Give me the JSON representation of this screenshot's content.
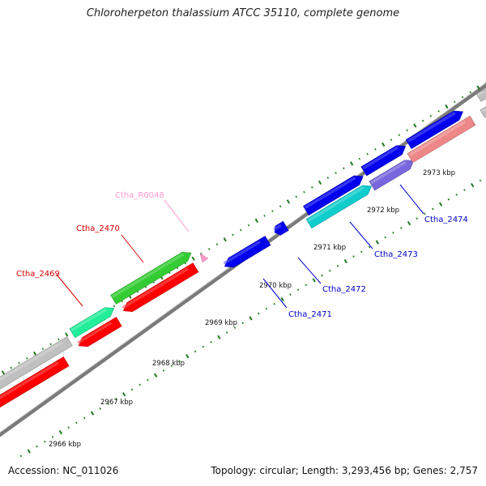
{
  "title": "Chloroherpeton thalassium ATCC 35110, complete genome",
  "footer": {
    "accession": "Accession: NC_011026",
    "summary": "Topology: circular; Length: 3,293,456 bp; Genes: 2,757"
  },
  "colors": {
    "backbone": "#7a7a7a",
    "ticks": "#1f7a1f",
    "red": "#ff0000",
    "green": "#33cc33",
    "aqua": "#22ee99",
    "gray": "#c0c0c0",
    "pink": "#ff99cc",
    "blue": "#0000ee",
    "cyan": "#11cccc",
    "slate": "#7766dd",
    "salmon": "#ee8888"
  },
  "scale": {
    "labels": [
      {
        "text": "2966 kbp"
      },
      {
        "text": "2967 kbp"
      },
      {
        "text": "2968 kbp"
      },
      {
        "text": "2969 kbp"
      },
      {
        "text": "2970 kbp"
      },
      {
        "text": "2971 kbp"
      },
      {
        "text": "2972 kbp"
      },
      {
        "text": "2973 kbp"
      }
    ]
  },
  "gene_labels": [
    {
      "text": "Ctha_2469",
      "color": "#dd0000"
    },
    {
      "text": "Ctha_2470",
      "color": "#dd0000"
    },
    {
      "text": "Ctha_R0048",
      "color": "#ff99cc"
    },
    {
      "text": "Ctha_2471",
      "color": "#0000cc"
    },
    {
      "text": "Ctha_2472",
      "color": "#0000cc"
    },
    {
      "text": "Ctha_2473",
      "color": "#0000cc"
    },
    {
      "text": "Ctha_2474",
      "color": "#0000cc"
    }
  ]
}
